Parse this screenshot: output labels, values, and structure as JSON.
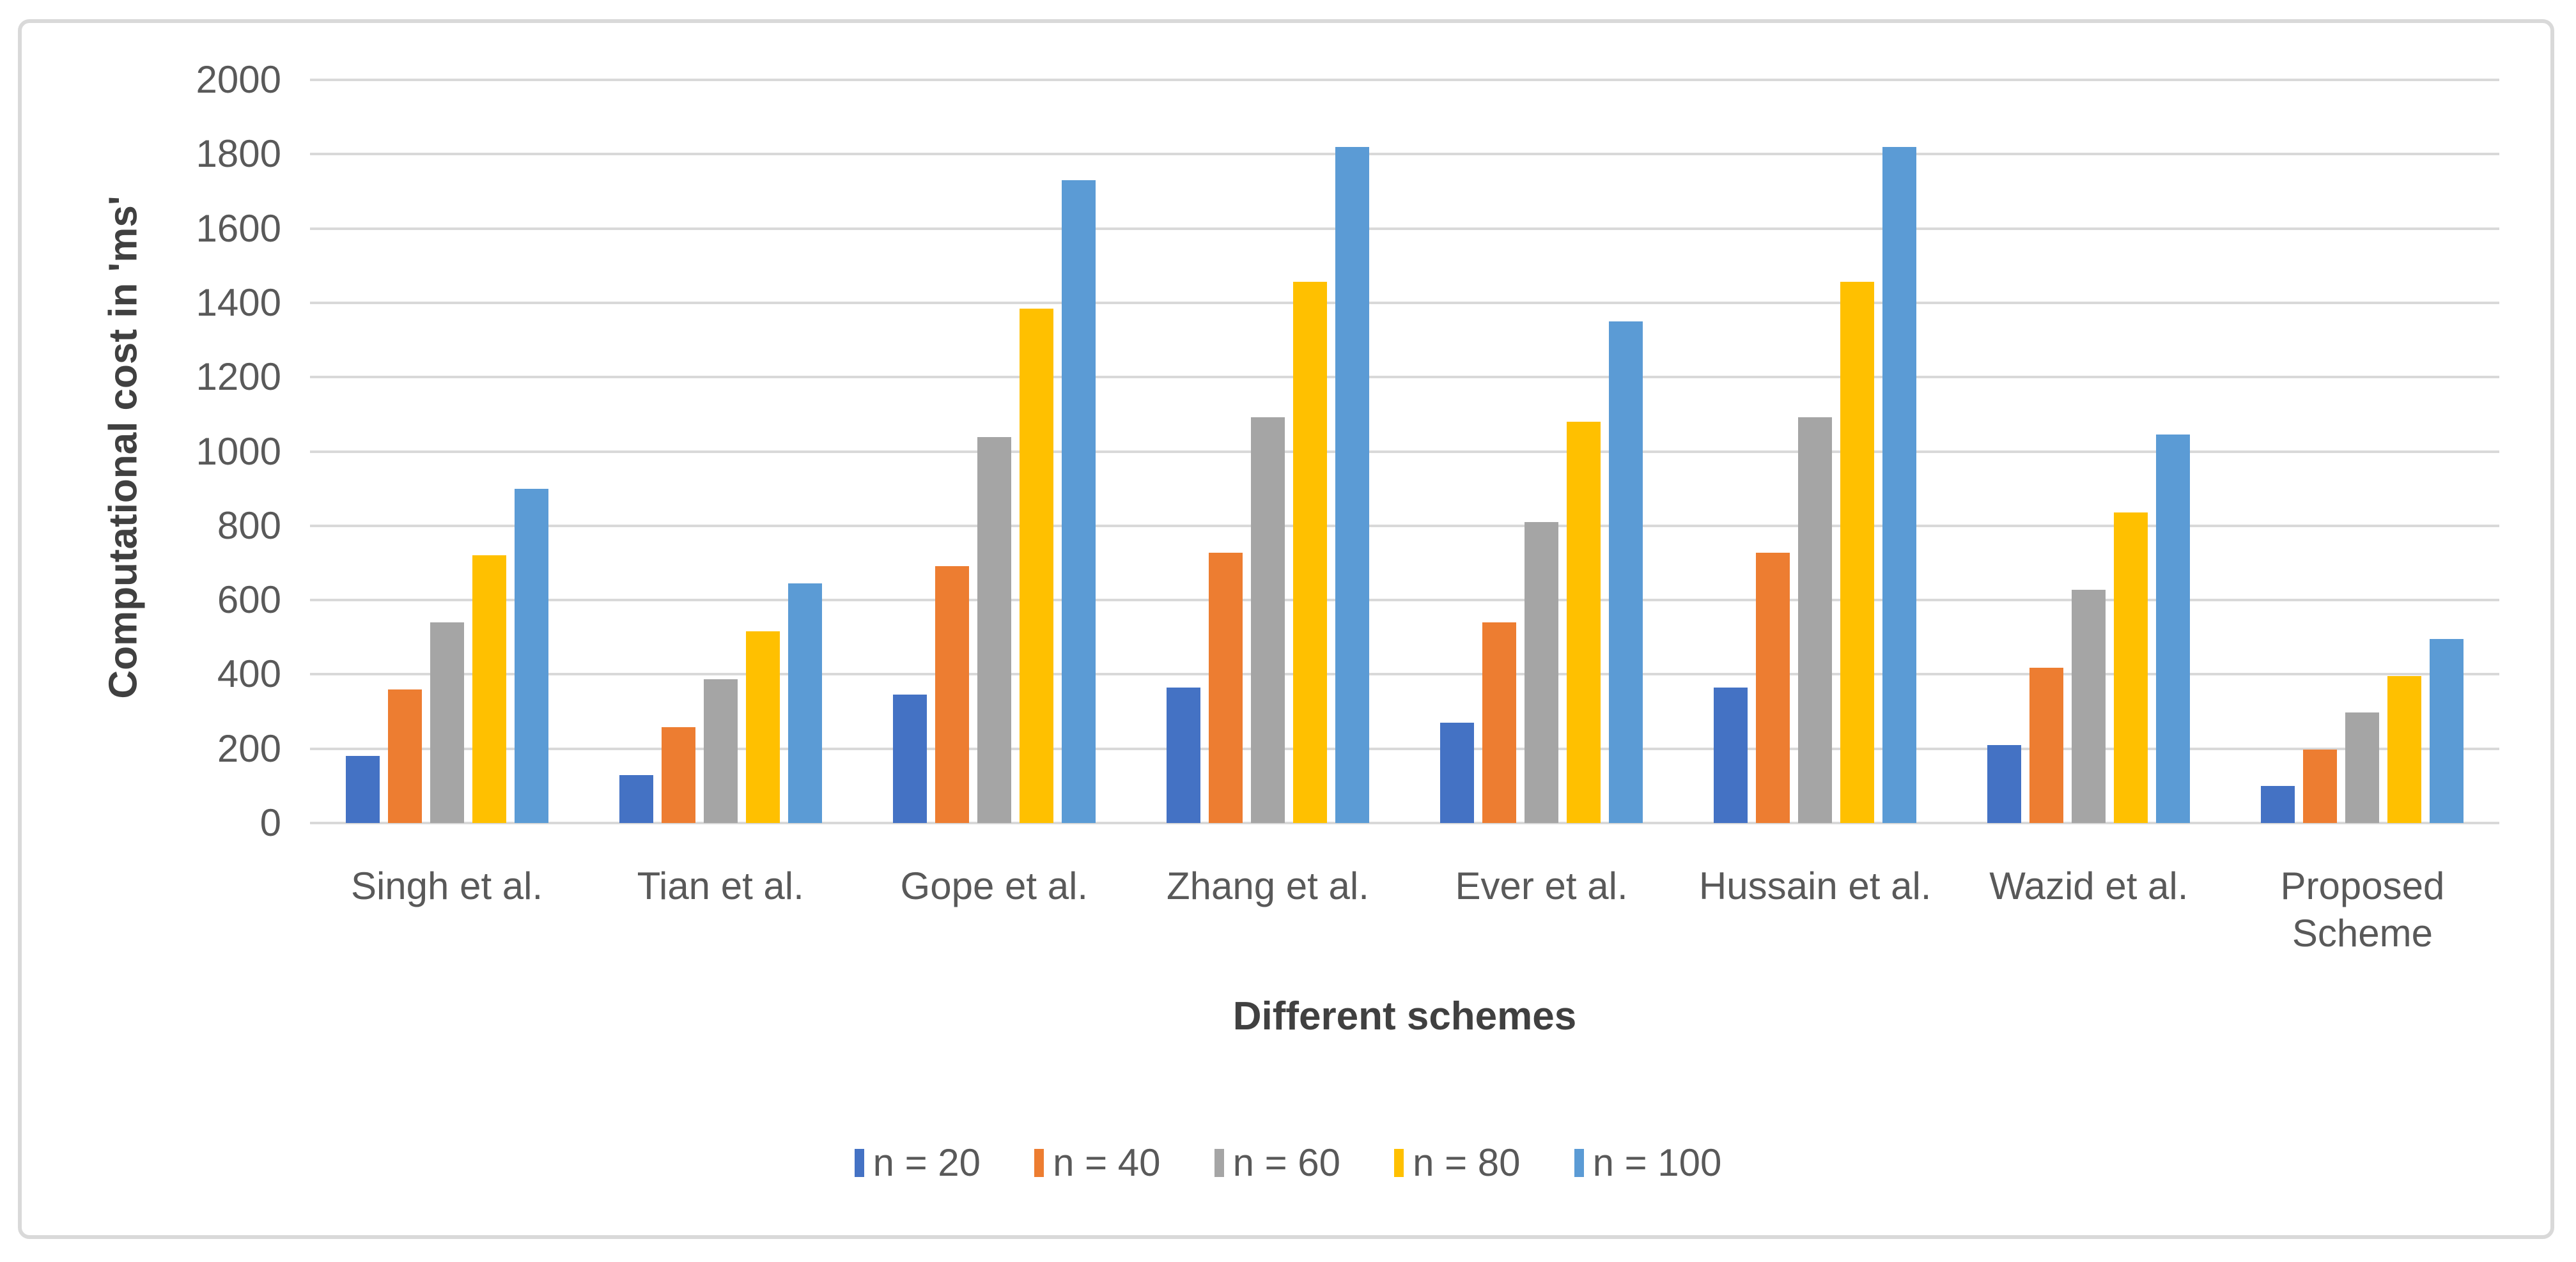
{
  "chart_data": {
    "type": "bar",
    "title": "",
    "xlabel": "Different schemes",
    "ylabel": "Computational cost in 'ms'",
    "categories": [
      "Singh et al.",
      "Tian et al.",
      "Gope et al.",
      "Zhang et al.",
      "Ever et al.",
      "Hussain et al.",
      "Wazid et al.",
      "Proposed Scheme"
    ],
    "series": [
      {
        "name": "n = 20",
        "color": "#4472C4",
        "values": [
          180,
          129,
          346,
          364,
          270,
          364,
          209,
          99
        ]
      },
      {
        "name": "n = 40",
        "color": "#ED7D31",
        "values": [
          360,
          258,
          692,
          728,
          540,
          728,
          418,
          198
        ]
      },
      {
        "name": "n = 60",
        "color": "#A5A5A5",
        "values": [
          540,
          387,
          1038,
          1092,
          810,
          1092,
          627,
          297
        ]
      },
      {
        "name": "n = 80",
        "color": "#FFC000",
        "values": [
          720,
          516,
          1384,
          1456,
          1080,
          1456,
          836,
          396
        ]
      },
      {
        "name": "n = 100",
        "color": "#5B9BD5",
        "values": [
          900,
          645,
          1730,
          1820,
          1350,
          1820,
          1045,
          495
        ]
      }
    ],
    "ylim": [
      0,
      2000
    ],
    "yticks": [
      0,
      200,
      400,
      600,
      800,
      1000,
      1200,
      1400,
      1600,
      1800,
      2000
    ],
    "grid": true,
    "legend_position": "bottom",
    "gridline_color": "#D9D9D9",
    "tick_label_color": "#595959",
    "axis_title_color": "#404040"
  }
}
